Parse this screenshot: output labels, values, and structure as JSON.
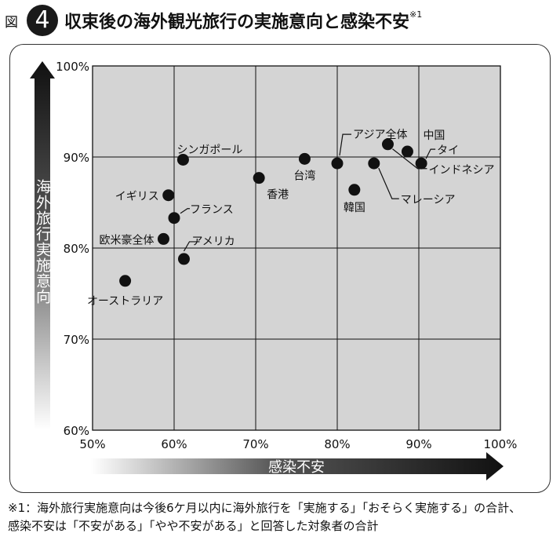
{
  "figure": {
    "label": "図",
    "number": "4",
    "title": "収束後の海外観光旅行の実施意向と感染不安",
    "title_note": "※1"
  },
  "chart_data": {
    "type": "scatter",
    "xlabel": "感染不安",
    "ylabel": "海外旅行実施意向",
    "xlim": [
      50,
      100
    ],
    "ylim": [
      60,
      100
    ],
    "x_ticks": [
      "50%",
      "60%",
      "70%",
      "80%",
      "90%",
      "100%"
    ],
    "y_ticks": [
      "60%",
      "70%",
      "80%",
      "90%",
      "100%"
    ],
    "grid": true,
    "points": [
      {
        "label": "オーストラリア",
        "x": 54.0,
        "y": 76.4
      },
      {
        "label": "欧米豪全体",
        "x": 58.7,
        "y": 81.0
      },
      {
        "label": "アメリカ",
        "x": 61.2,
        "y": 78.8
      },
      {
        "label": "フランス",
        "x": 60.0,
        "y": 83.3
      },
      {
        "label": "イギリス",
        "x": 59.3,
        "y": 85.8
      },
      {
        "label": "シンガポール",
        "x": 61.1,
        "y": 89.7
      },
      {
        "label": "香港",
        "x": 70.4,
        "y": 87.7
      },
      {
        "label": "台湾",
        "x": 76.0,
        "y": 89.8
      },
      {
        "label": "アジア全体",
        "x": 80.0,
        "y": 89.3
      },
      {
        "label": "韓国",
        "x": 82.1,
        "y": 86.4
      },
      {
        "label": "マレーシア",
        "x": 84.5,
        "y": 89.3
      },
      {
        "label": "インドネシア",
        "x": 86.2,
        "y": 91.4
      },
      {
        "label": "中国",
        "x": 88.6,
        "y": 90.6
      },
      {
        "label": "タイ",
        "x": 90.3,
        "y": 89.3
      }
    ]
  },
  "footnote": {
    "line1": "※1：海外旅行実施意向は今後6ケ月以内に海外旅行を「実施する」「おそらく実施する」の合計、",
    "line2": "感染不安は「不安がある」「やや不安がある」と回答した対象者の合計"
  }
}
